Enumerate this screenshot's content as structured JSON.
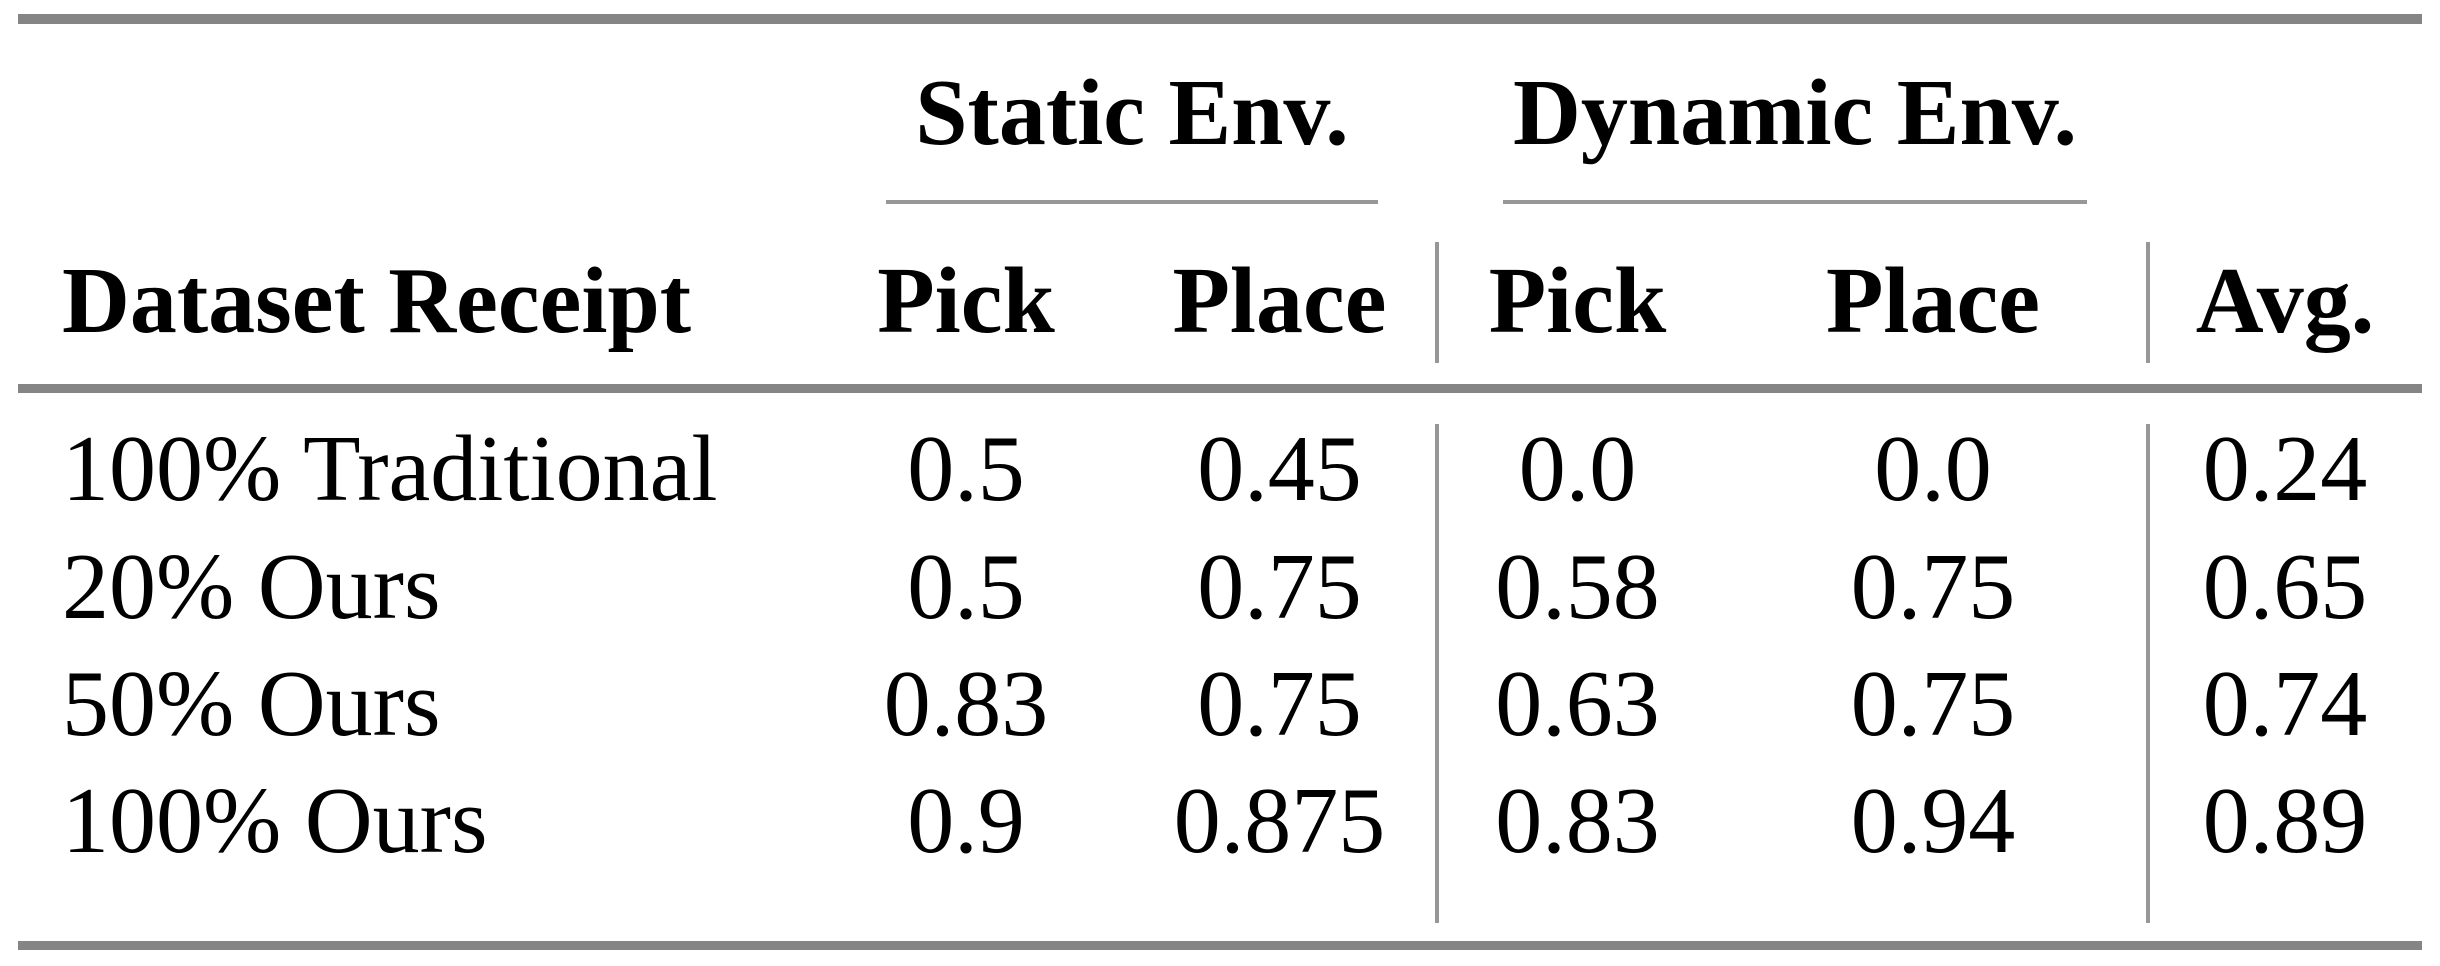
{
  "table": {
    "column_groups": {
      "static": "Static Env.",
      "dynamic": "Dynamic Env."
    },
    "headers": {
      "dataset": "Dataset Receipt",
      "static_pick": "Pick",
      "static_place": "Place",
      "dynamic_pick": "Pick",
      "dynamic_place": "Place",
      "avg": "Avg."
    },
    "rows": [
      {
        "dataset": "100% Traditional",
        "static_pick": "0.5",
        "static_place": "0.45",
        "dynamic_pick": "0.0",
        "dynamic_place": "0.0",
        "avg": "0.24"
      },
      {
        "dataset": "20% Ours",
        "static_pick": "0.5",
        "static_place": "0.75",
        "dynamic_pick": "0.58",
        "dynamic_place": "0.75",
        "avg": "0.65"
      },
      {
        "dataset": "50% Ours",
        "static_pick": "0.83",
        "static_place": "0.75",
        "dynamic_pick": "0.63",
        "dynamic_place": "0.75",
        "avg": "0.74"
      },
      {
        "dataset": "100% Ours",
        "static_pick": "0.9",
        "static_place": "0.875",
        "dynamic_pick": "0.83",
        "dynamic_place": "0.94",
        "avg": "0.89"
      }
    ],
    "colors": {
      "rule_thick": "#858585",
      "rule_thin": "#979797",
      "text": "#000000",
      "background": "#ffffff"
    }
  }
}
